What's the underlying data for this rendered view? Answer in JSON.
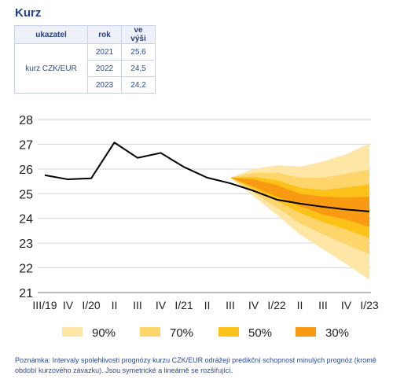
{
  "title": "Kurz",
  "table": {
    "headers": [
      "ukazatel",
      "rok",
      "ve výši"
    ],
    "indicator": "kurz CZK/EUR",
    "rows": [
      {
        "year": "2021",
        "value": "25,6"
      },
      {
        "year": "2022",
        "value": "24,5"
      },
      {
        "year": "2023",
        "value": "24,2"
      }
    ]
  },
  "chart_data": {
    "type": "line",
    "categories": [
      "III/19",
      "IV",
      "I/20",
      "II",
      "III",
      "IV",
      "I/21",
      "II",
      "III",
      "IV",
      "I/22",
      "II",
      "III",
      "IV",
      "I/23"
    ],
    "ylim": [
      21,
      28
    ],
    "yticks": [
      21,
      22,
      23,
      24,
      25,
      26,
      27,
      28
    ],
    "grid": "horizontal",
    "legend_placement": "bottom",
    "series": [
      {
        "values": [
          25.75,
          25.58,
          25.62,
          27.07,
          26.45,
          26.65,
          26.08,
          25.65,
          25.42,
          25.12,
          24.76,
          24.6,
          24.47,
          24.36,
          24.28
        ],
        "color": "#000000"
      }
    ],
    "fan_bands": [
      {
        "name": "90%",
        "color": "#fde6a6",
        "upper": [
          25.65,
          26.0,
          26.15,
          26.1,
          26.3,
          26.6,
          27.02
        ],
        "lower": [
          25.65,
          24.9,
          24.15,
          23.35,
          22.75,
          22.15,
          21.52
        ]
      },
      {
        "name": "70%",
        "color": "#fdd56b",
        "upper": [
          25.65,
          25.85,
          25.85,
          25.65,
          25.65,
          25.8,
          25.98
        ],
        "lower": [
          25.65,
          25.05,
          24.45,
          23.8,
          23.35,
          22.95,
          22.55
        ]
      },
      {
        "name": "50%",
        "color": "#fdc21a",
        "upper": [
          25.65,
          25.68,
          25.55,
          25.25,
          25.15,
          25.25,
          25.38
        ],
        "lower": [
          25.65,
          25.2,
          24.72,
          24.22,
          23.85,
          23.55,
          23.2
        ]
      },
      {
        "name": "30%",
        "color": "#f99b12",
        "upper": [
          25.65,
          25.58,
          25.35,
          25.0,
          24.88,
          24.85,
          24.88
        ],
        "lower": [
          25.65,
          25.28,
          24.88,
          24.5,
          24.15,
          23.95,
          23.65
        ]
      }
    ]
  },
  "note": "Poznámka: Intervaly spolehlivosti prognózy kurzu CZK/EUR odrážejí predikční schopnost minulých prognóz (kromě období kurzového závazku). Jsou symetrické a lineárně se rozšiřující."
}
